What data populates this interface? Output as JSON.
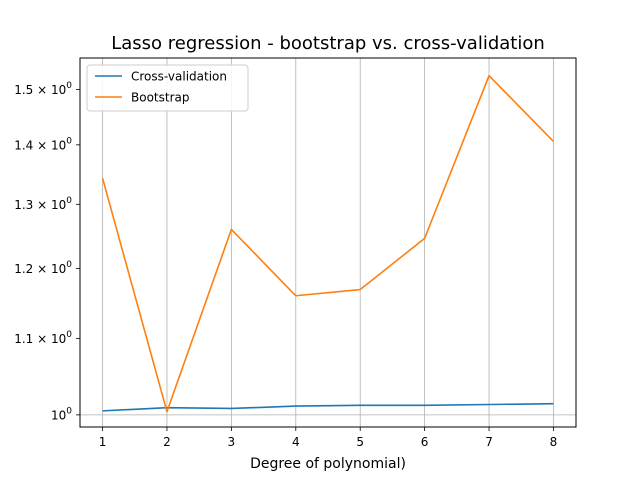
{
  "chart_data": {
    "type": "line",
    "title": "Lasso regression - bootstrap vs. cross-validation",
    "xlabel": "Degree of polynomial)",
    "ylabel": "",
    "y_scale": "log",
    "x": [
      1,
      2,
      3,
      4,
      5,
      6,
      7,
      8
    ],
    "xlim": [
      0.65,
      8.35
    ],
    "ylim": [
      0.985,
      1.56
    ],
    "x_ticks": [
      {
        "value": 1,
        "label": "1"
      },
      {
        "value": 2,
        "label": "2"
      },
      {
        "value": 3,
        "label": "3"
      },
      {
        "value": 4,
        "label": "4"
      },
      {
        "value": 5,
        "label": "5"
      },
      {
        "value": 6,
        "label": "6"
      },
      {
        "value": 7,
        "label": "7"
      },
      {
        "value": 8,
        "label": "8"
      }
    ],
    "y_ticks": [
      {
        "value": 1.0,
        "base": "10",
        "exp": "0",
        "mantissa": ""
      },
      {
        "value": 1.1,
        "base": "10",
        "exp": "0",
        "mantissa": "1.1 × "
      },
      {
        "value": 1.2,
        "base": "10",
        "exp": "0",
        "mantissa": "1.2 × "
      },
      {
        "value": 1.3,
        "base": "10",
        "exp": "0",
        "mantissa": "1.3 × "
      },
      {
        "value": 1.4,
        "base": "10",
        "exp": "0",
        "mantissa": "1.4 × "
      },
      {
        "value": 1.5,
        "base": "10",
        "exp": "0",
        "mantissa": "1.5 × "
      }
    ],
    "grid": {
      "x": true,
      "y_at": [
        1.0
      ]
    },
    "legend_position": "top-left",
    "series": [
      {
        "name": "Cross-validation",
        "color": "#1f77b4",
        "values": [
          1.005,
          1.009,
          1.008,
          1.011,
          1.012,
          1.012,
          1.013,
          1.014
        ]
      },
      {
        "name": "Bootstrap",
        "color": "#ff7f0e",
        "values": [
          1.343,
          1.004,
          1.26,
          1.16,
          1.169,
          1.246,
          1.526,
          1.406
        ]
      }
    ]
  }
}
